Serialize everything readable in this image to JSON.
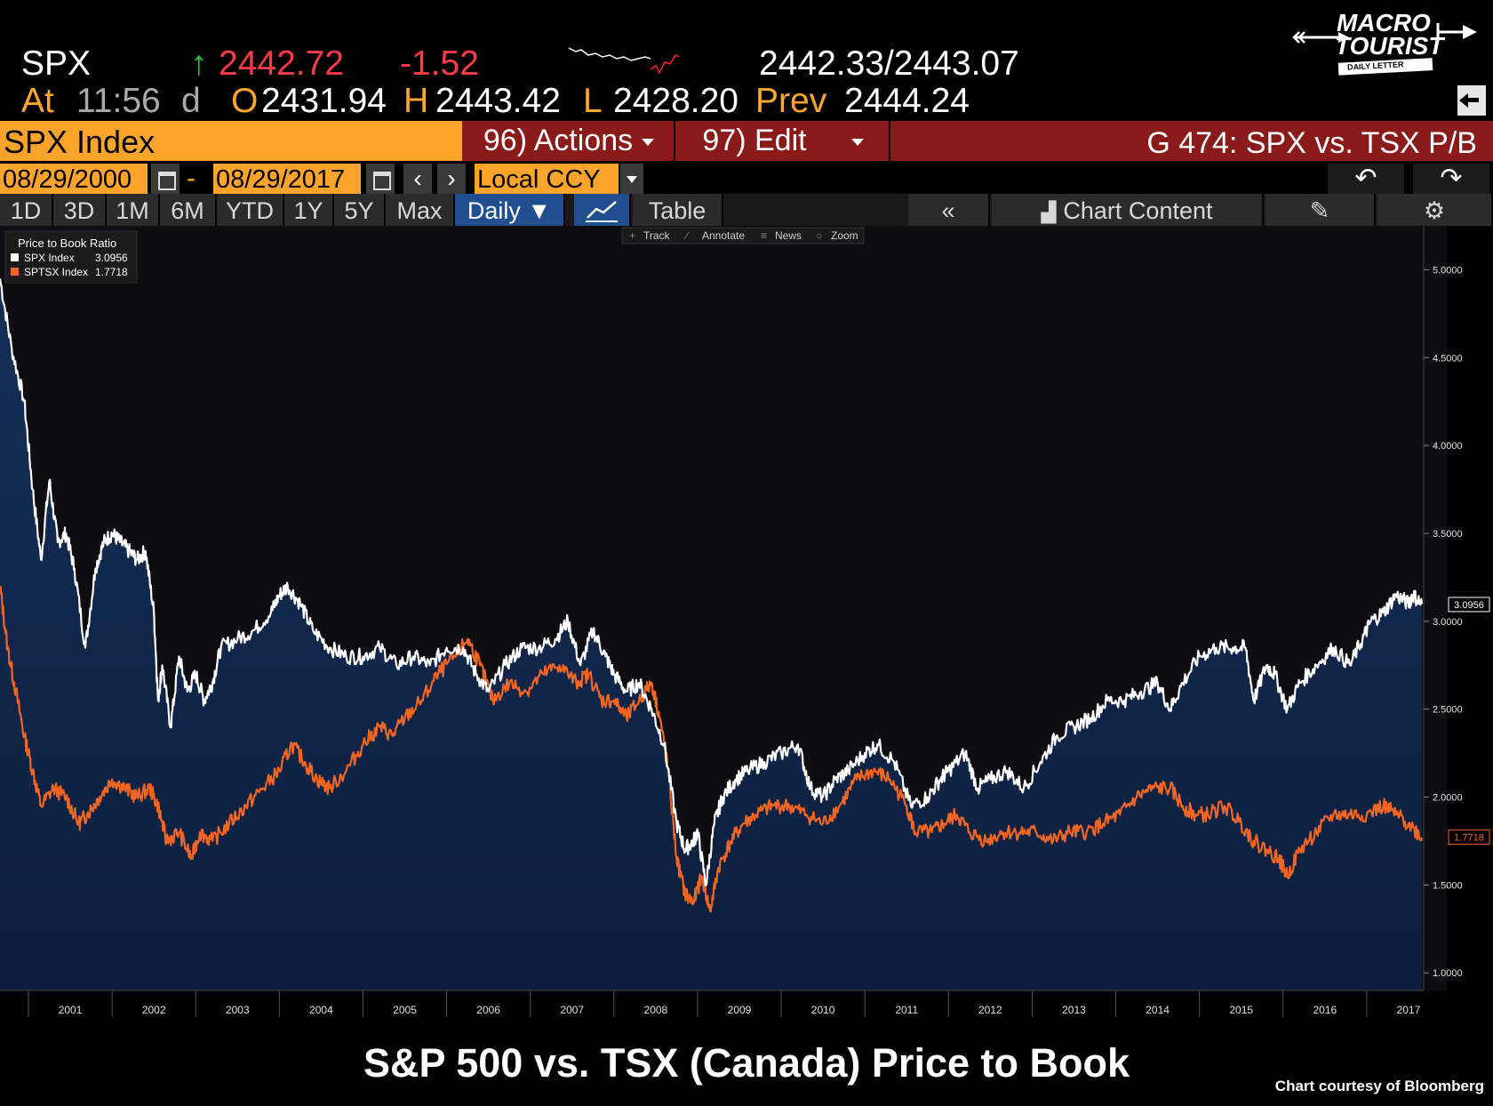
{
  "quote": {
    "ticker": "SPX",
    "arrow": "↑",
    "last": "2442.72",
    "change": "-1.52",
    "bid_ask": "2442.33/2443.07",
    "at_label": "At",
    "time": "11:56",
    "time_suffix": "d",
    "open_label": "O",
    "open": "2431.94",
    "high_label": "H",
    "high": "2443.42",
    "low_label": "L",
    "low": "2428.20",
    "prev_label": "Prev",
    "prev": "2444.24"
  },
  "logo": {
    "line1": "MACRO",
    "line2": "TOURIST",
    "line3": "DAILY LETTER"
  },
  "toolbar": {
    "security": "SPX Index",
    "actions": "96) Actions",
    "edit": "97) Edit",
    "graph_title": "G 474: SPX vs. TSX P/B"
  },
  "range": {
    "start": "08/29/2000",
    "sep": "-",
    "end": "08/29/2017",
    "currency": "Local CCY",
    "prev_icon": "chevron-left-icon",
    "next_icon": "chevron-right-icon",
    "undo_icon": "undo-icon",
    "redo_icon": "redo-icon"
  },
  "periods": [
    "1D",
    "3D",
    "1M",
    "6M",
    "YTD",
    "1Y",
    "5Y",
    "Max"
  ],
  "frequency": "Daily ▼",
  "view": {
    "table": "Table",
    "collapse": "«",
    "chart_content": "Chart Content",
    "edit_icon": "pencil-icon",
    "settings_icon": "gear-icon"
  },
  "chart_tools": [
    "Track",
    "Annotate",
    "News",
    "Zoom"
  ],
  "chart_data": {
    "type": "line",
    "legend_title": "Price to Book Ratio",
    "legend_placement": "top-left",
    "ylim": [
      0.9,
      5.25
    ],
    "y_ticks": [
      "1.0000",
      "1.5000",
      "2.0000",
      "2.5000",
      "3.0000",
      "3.5000",
      "4.0000",
      "4.5000",
      "5.0000"
    ],
    "x_ticks": [
      "2001",
      "2002",
      "2003",
      "2004",
      "2005",
      "2006",
      "2007",
      "2008",
      "2009",
      "2010",
      "2011",
      "2012",
      "2013",
      "2014",
      "2015",
      "2016",
      "2017"
    ],
    "series": [
      {
        "name": "SPX Index",
        "last": "3.0956",
        "color": "#ffffff",
        "points": [
          [
            2000.66,
            4.95
          ],
          [
            2000.8,
            4.55
          ],
          [
            2000.95,
            4.25
          ],
          [
            2001.05,
            3.75
          ],
          [
            2001.15,
            3.35
          ],
          [
            2001.25,
            3.8
          ],
          [
            2001.35,
            3.45
          ],
          [
            2001.45,
            3.5
          ],
          [
            2001.55,
            3.3
          ],
          [
            2001.68,
            2.85
          ],
          [
            2001.8,
            3.3
          ],
          [
            2001.9,
            3.45
          ],
          [
            2002.0,
            3.5
          ],
          [
            2002.1,
            3.45
          ],
          [
            2002.2,
            3.4
          ],
          [
            2002.3,
            3.35
          ],
          [
            2002.4,
            3.4
          ],
          [
            2002.5,
            3.05
          ],
          [
            2002.55,
            2.55
          ],
          [
            2002.6,
            2.75
          ],
          [
            2002.7,
            2.4
          ],
          [
            2002.8,
            2.8
          ],
          [
            2002.9,
            2.6
          ],
          [
            2003.0,
            2.7
          ],
          [
            2003.1,
            2.55
          ],
          [
            2003.2,
            2.65
          ],
          [
            2003.3,
            2.85
          ],
          [
            2003.5,
            2.9
          ],
          [
            2003.7,
            2.95
          ],
          [
            2003.9,
            3.05
          ],
          [
            2004.0,
            3.15
          ],
          [
            2004.1,
            3.2
          ],
          [
            2004.25,
            3.1
          ],
          [
            2004.4,
            2.95
          ],
          [
            2004.6,
            2.85
          ],
          [
            2004.8,
            2.8
          ],
          [
            2005.0,
            2.8
          ],
          [
            2005.2,
            2.85
          ],
          [
            2005.4,
            2.75
          ],
          [
            2005.6,
            2.8
          ],
          [
            2005.8,
            2.75
          ],
          [
            2006.0,
            2.85
          ],
          [
            2006.2,
            2.85
          ],
          [
            2006.35,
            2.7
          ],
          [
            2006.5,
            2.6
          ],
          [
            2006.7,
            2.75
          ],
          [
            2006.9,
            2.85
          ],
          [
            2007.1,
            2.85
          ],
          [
            2007.3,
            2.9
          ],
          [
            2007.45,
            3.0
          ],
          [
            2007.6,
            2.75
          ],
          [
            2007.75,
            2.95
          ],
          [
            2007.9,
            2.8
          ],
          [
            2008.0,
            2.7
          ],
          [
            2008.15,
            2.6
          ],
          [
            2008.3,
            2.65
          ],
          [
            2008.45,
            2.5
          ],
          [
            2008.6,
            2.3
          ],
          [
            2008.75,
            1.85
          ],
          [
            2008.85,
            1.7
          ],
          [
            2008.95,
            1.75
          ],
          [
            2009.0,
            1.8
          ],
          [
            2009.1,
            1.5
          ],
          [
            2009.2,
            1.85
          ],
          [
            2009.3,
            2.0
          ],
          [
            2009.45,
            2.1
          ],
          [
            2009.6,
            2.15
          ],
          [
            2009.8,
            2.2
          ],
          [
            2010.0,
            2.25
          ],
          [
            2010.2,
            2.3
          ],
          [
            2010.35,
            2.05
          ],
          [
            2010.5,
            2.0
          ],
          [
            2010.65,
            2.1
          ],
          [
            2010.8,
            2.15
          ],
          [
            2011.0,
            2.25
          ],
          [
            2011.15,
            2.3
          ],
          [
            2011.35,
            2.2
          ],
          [
            2011.55,
            1.95
          ],
          [
            2011.75,
            2.0
          ],
          [
            2011.9,
            2.1
          ],
          [
            2012.0,
            2.15
          ],
          [
            2012.2,
            2.25
          ],
          [
            2012.35,
            2.05
          ],
          [
            2012.5,
            2.1
          ],
          [
            2012.7,
            2.15
          ],
          [
            2012.9,
            2.05
          ],
          [
            2013.1,
            2.2
          ],
          [
            2013.3,
            2.35
          ],
          [
            2013.5,
            2.4
          ],
          [
            2013.7,
            2.45
          ],
          [
            2013.9,
            2.55
          ],
          [
            2014.1,
            2.55
          ],
          [
            2014.3,
            2.6
          ],
          [
            2014.5,
            2.65
          ],
          [
            2014.65,
            2.5
          ],
          [
            2014.8,
            2.65
          ],
          [
            2015.0,
            2.8
          ],
          [
            2015.2,
            2.85
          ],
          [
            2015.4,
            2.85
          ],
          [
            2015.55,
            2.85
          ],
          [
            2015.65,
            2.55
          ],
          [
            2015.8,
            2.75
          ],
          [
            2015.9,
            2.7
          ],
          [
            2016.05,
            2.5
          ],
          [
            2016.2,
            2.65
          ],
          [
            2016.4,
            2.75
          ],
          [
            2016.6,
            2.85
          ],
          [
            2016.8,
            2.75
          ],
          [
            2016.95,
            2.9
          ],
          [
            2017.05,
            3.0
          ],
          [
            2017.2,
            3.05
          ],
          [
            2017.35,
            3.15
          ],
          [
            2017.5,
            3.1
          ],
          [
            2017.55,
            3.15
          ],
          [
            2017.66,
            3.1
          ]
        ]
      },
      {
        "name": "SPTSX Index",
        "last": "1.7718",
        "color": "#f26522",
        "points": [
          [
            2000.66,
            3.2
          ],
          [
            2000.75,
            2.85
          ],
          [
            2000.85,
            2.6
          ],
          [
            2000.95,
            2.35
          ],
          [
            2001.05,
            2.15
          ],
          [
            2001.15,
            1.95
          ],
          [
            2001.3,
            2.05
          ],
          [
            2001.45,
            2.0
          ],
          [
            2001.6,
            1.85
          ],
          [
            2001.7,
            1.9
          ],
          [
            2001.85,
            2.0
          ],
          [
            2002.0,
            2.1
          ],
          [
            2002.15,
            2.05
          ],
          [
            2002.3,
            2.0
          ],
          [
            2002.45,
            2.05
          ],
          [
            2002.55,
            1.95
          ],
          [
            2002.65,
            1.75
          ],
          [
            2002.8,
            1.8
          ],
          [
            2002.95,
            1.65
          ],
          [
            2003.05,
            1.8
          ],
          [
            2003.2,
            1.75
          ],
          [
            2003.4,
            1.85
          ],
          [
            2003.6,
            1.95
          ],
          [
            2003.8,
            2.05
          ],
          [
            2004.0,
            2.15
          ],
          [
            2004.15,
            2.3
          ],
          [
            2004.3,
            2.2
          ],
          [
            2004.45,
            2.1
          ],
          [
            2004.6,
            2.05
          ],
          [
            2004.8,
            2.15
          ],
          [
            2005.0,
            2.3
          ],
          [
            2005.2,
            2.4
          ],
          [
            2005.35,
            2.35
          ],
          [
            2005.5,
            2.45
          ],
          [
            2005.7,
            2.55
          ],
          [
            2005.9,
            2.7
          ],
          [
            2006.1,
            2.8
          ],
          [
            2006.25,
            2.9
          ],
          [
            2006.4,
            2.75
          ],
          [
            2006.55,
            2.55
          ],
          [
            2006.75,
            2.65
          ],
          [
            2006.95,
            2.6
          ],
          [
            2007.15,
            2.7
          ],
          [
            2007.35,
            2.75
          ],
          [
            2007.55,
            2.65
          ],
          [
            2007.7,
            2.7
          ],
          [
            2007.85,
            2.55
          ],
          [
            2008.0,
            2.55
          ],
          [
            2008.15,
            2.45
          ],
          [
            2008.3,
            2.55
          ],
          [
            2008.45,
            2.65
          ],
          [
            2008.55,
            2.45
          ],
          [
            2008.65,
            2.15
          ],
          [
            2008.75,
            1.65
          ],
          [
            2008.85,
            1.45
          ],
          [
            2008.95,
            1.4
          ],
          [
            2009.05,
            1.55
          ],
          [
            2009.15,
            1.35
          ],
          [
            2009.25,
            1.6
          ],
          [
            2009.4,
            1.75
          ],
          [
            2009.55,
            1.85
          ],
          [
            2009.7,
            1.9
          ],
          [
            2009.9,
            1.95
          ],
          [
            2010.1,
            1.95
          ],
          [
            2010.3,
            1.9
          ],
          [
            2010.5,
            1.85
          ],
          [
            2010.7,
            1.95
          ],
          [
            2010.9,
            2.1
          ],
          [
            2011.1,
            2.15
          ],
          [
            2011.3,
            2.1
          ],
          [
            2011.5,
            1.95
          ],
          [
            2011.6,
            1.8
          ],
          [
            2011.8,
            1.8
          ],
          [
            2011.95,
            1.85
          ],
          [
            2012.1,
            1.9
          ],
          [
            2012.25,
            1.8
          ],
          [
            2012.45,
            1.75
          ],
          [
            2012.65,
            1.8
          ],
          [
            2012.85,
            1.8
          ],
          [
            2013.05,
            1.8
          ],
          [
            2013.25,
            1.75
          ],
          [
            2013.45,
            1.8
          ],
          [
            2013.65,
            1.8
          ],
          [
            2013.85,
            1.85
          ],
          [
            2014.05,
            1.9
          ],
          [
            2014.25,
            2.0
          ],
          [
            2014.45,
            2.05
          ],
          [
            2014.65,
            2.05
          ],
          [
            2014.8,
            1.95
          ],
          [
            2014.95,
            1.9
          ],
          [
            2015.1,
            1.9
          ],
          [
            2015.3,
            1.95
          ],
          [
            2015.5,
            1.85
          ],
          [
            2015.65,
            1.75
          ],
          [
            2015.8,
            1.7
          ],
          [
            2015.95,
            1.65
          ],
          [
            2016.05,
            1.55
          ],
          [
            2016.2,
            1.7
          ],
          [
            2016.4,
            1.8
          ],
          [
            2016.6,
            1.9
          ],
          [
            2016.8,
            1.9
          ],
          [
            2017.0,
            1.9
          ],
          [
            2017.2,
            1.95
          ],
          [
            2017.35,
            1.9
          ],
          [
            2017.5,
            1.85
          ],
          [
            2017.66,
            1.77
          ]
        ]
      }
    ]
  },
  "footer": {
    "title": "S&P 500 vs. TSX (Canada) Price to Book",
    "credit": "Chart courtesy of Bloomberg"
  }
}
